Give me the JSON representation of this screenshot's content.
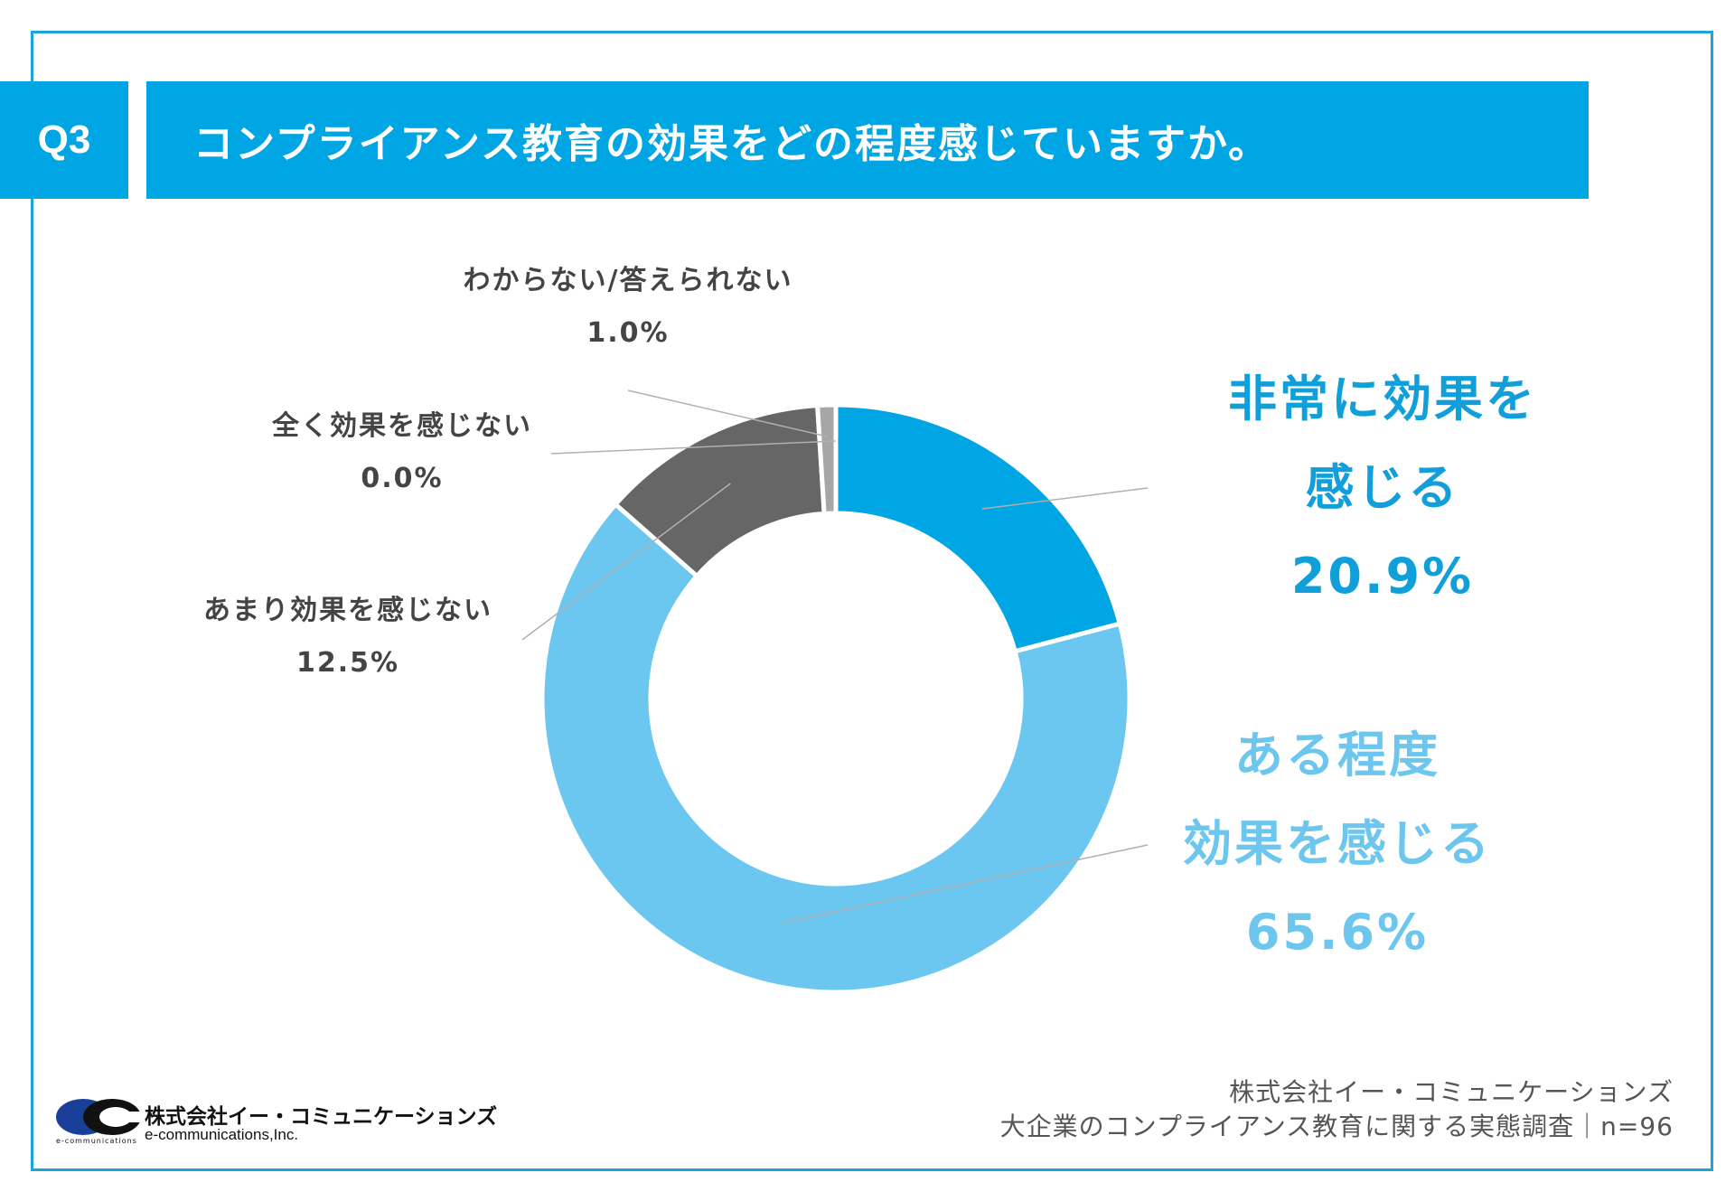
{
  "header": {
    "question_number": "Q3",
    "question_text": "コンプライアンス教育の効果をどの程度感じていますか。"
  },
  "chart_data": {
    "type": "pie",
    "title": "コンプライアンス教育の効果をどの程度感じていますか。",
    "labels": [
      "非常に効果を感じる",
      "ある程度効果を感じる",
      "あまり効果を感じない",
      "全く効果を感じない",
      "わからない/答えられない"
    ],
    "values": [
      20.9,
      65.6,
      12.5,
      0.0,
      1.0
    ],
    "value_labels": [
      "20.9%",
      "65.6%",
      "12.5%",
      "0.0%",
      "1.0%"
    ],
    "colors": [
      "#00a5e3",
      "#6bc7ef",
      "#666666",
      "#aaaaaa",
      "#a6a6a6"
    ],
    "label_lines": [
      [
        "非常に効果を",
        "感じる"
      ],
      [
        "ある程度",
        "効果を感じる"
      ],
      [
        "あまり効果を感じない"
      ],
      [
        "全く効果を感じない"
      ],
      [
        "わからない/答えられない"
      ]
    ]
  },
  "footer": {
    "source_company": "株式会社イー・コミュニケーションズ",
    "source_survey": "大企業のコンプライアンス教育に関する実態調査｜n=96",
    "logo_name": "株式会社イー・コミュニケーションズ",
    "logo_en": "e-communications,Inc.",
    "logo_small": "e-communications"
  }
}
